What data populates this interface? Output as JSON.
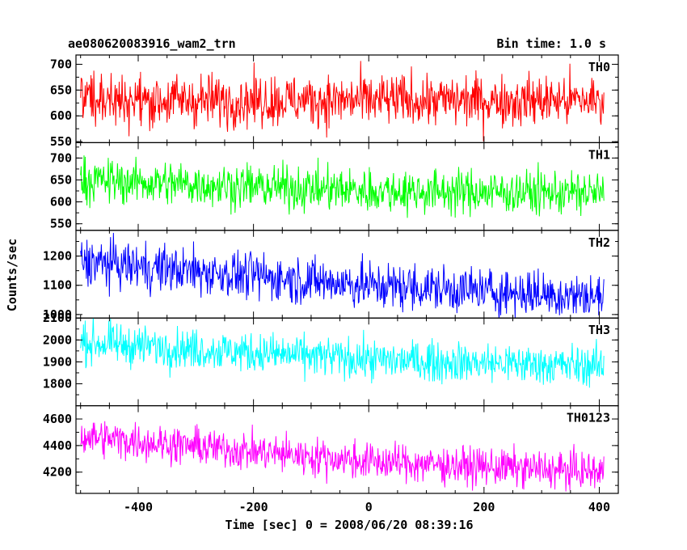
{
  "header": {
    "title": "ae080620083916_wam2_trn",
    "bin_time": "Bin time: 1.0 s"
  },
  "chart_data": {
    "type": "line",
    "xlabel": "Time [sec] 0 = 2008/06/20 08:39:16",
    "ylabel": "Counts/sec",
    "xlim": [
      -508,
      433
    ],
    "x_range": [
      -500,
      408
    ],
    "bin_time_s": 1.0,
    "x_ticks": [
      -400,
      -200,
      0,
      200,
      400
    ],
    "grid": false,
    "panels": [
      {
        "name": "TH0",
        "color": "#ff0000",
        "ylim": [
          548,
          718
        ],
        "y_ticks": [
          550,
          600,
          650,
          700
        ],
        "trend": [
          [
            -500,
            630
          ],
          [
            0,
            630
          ],
          [
            408,
            630
          ]
        ],
        "noise": 25
      },
      {
        "name": "TH1",
        "color": "#00ff00",
        "ylim": [
          535,
          735
        ],
        "y_ticks": [
          550,
          600,
          650,
          700
        ],
        "trend": [
          [
            -500,
            650
          ],
          [
            0,
            625
          ],
          [
            408,
            620
          ]
        ],
        "noise": 25
      },
      {
        "name": "TH2",
        "color": "#0000ff",
        "ylim": [
          988,
          1288
        ],
        "y_ticks": [
          1000,
          1100,
          1200
        ],
        "trend": [
          [
            -500,
            1180
          ],
          [
            0,
            1100
          ],
          [
            408,
            1060
          ]
        ],
        "noise": 40
      },
      {
        "name": "TH3",
        "color": "#00ffff",
        "ylim": [
          1700,
          2100
        ],
        "y_ticks": [
          1800,
          1900,
          2000,
          2100
        ],
        "trend": [
          [
            -500,
            1990
          ],
          [
            0,
            1910
          ],
          [
            408,
            1880
          ]
        ],
        "noise": 45
      },
      {
        "name": "TH0123",
        "color": "#ff00ff",
        "ylim": [
          4040,
          4700
        ],
        "y_ticks": [
          4200,
          4400,
          4600
        ],
        "trend": [
          [
            -500,
            4470
          ],
          [
            0,
            4280
          ],
          [
            408,
            4200
          ]
        ],
        "noise": 70
      }
    ]
  }
}
